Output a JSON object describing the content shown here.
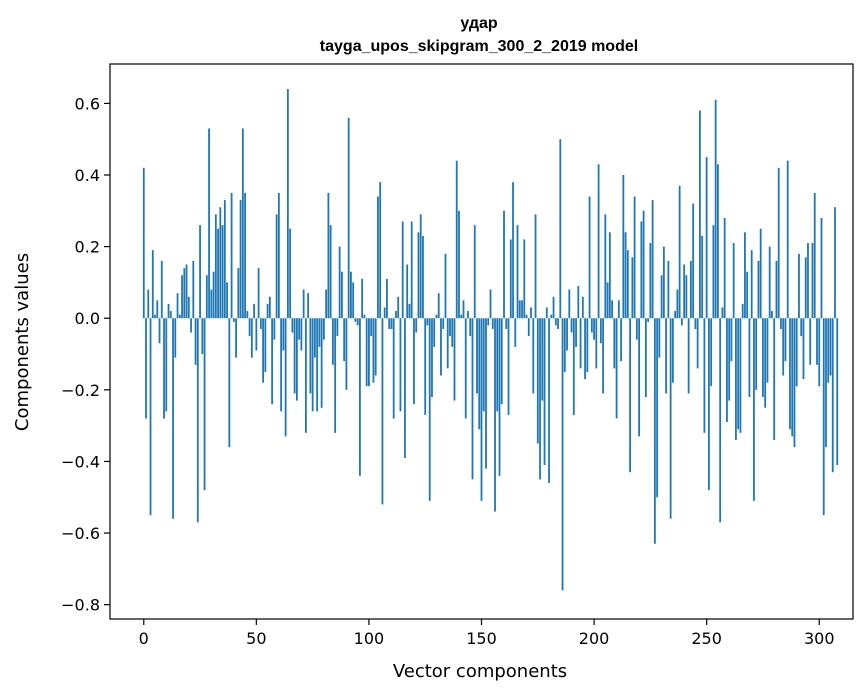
{
  "chart_data": {
    "type": "bar",
    "title": "удар",
    "subtitle": "tayga_upos_skipgram_300_2_2019 model",
    "xlabel": "Vector components",
    "ylabel": "Components values",
    "xlim": [
      -15,
      315
    ],
    "ylim": [
      -0.84,
      0.71
    ],
    "xticks": [
      0,
      50,
      100,
      150,
      200,
      250,
      300
    ],
    "xtick_labels": [
      "0",
      "50",
      "100",
      "150",
      "200",
      "250",
      "300"
    ],
    "yticks": [
      -0.8,
      -0.6,
      -0.4,
      -0.2,
      0.0,
      0.2,
      0.4,
      0.6
    ],
    "ytick_labels": [
      "−0.8",
      "−0.6",
      "−0.4",
      "−0.2",
      "0.0",
      "0.2",
      "0.4",
      "0.6"
    ],
    "bar_color": "#1f77b4",
    "grid": false,
    "values": [
      0.42,
      -0.28,
      0.08,
      -0.55,
      0.19,
      0.01,
      0.05,
      -0.07,
      0.16,
      -0.28,
      -0.26,
      0.04,
      0.02,
      -0.56,
      -0.11,
      0.07,
      0.01,
      0.12,
      0.14,
      0.15,
      0.06,
      -0.04,
      0.16,
      -0.13,
      -0.57,
      0.26,
      -0.1,
      -0.48,
      0.12,
      0.53,
      0.08,
      0.13,
      0.29,
      0.25,
      0.31,
      0.26,
      0.33,
      0.1,
      -0.36,
      0.35,
      -0.01,
      -0.11,
      0.14,
      0.33,
      0.53,
      0.35,
      0.02,
      -0.05,
      -0.11,
      0.04,
      -0.09,
      0.14,
      -0.03,
      -0.18,
      -0.15,
      0.04,
      0.06,
      -0.24,
      -0.06,
      0.29,
      0.35,
      -0.26,
      -0.09,
      -0.33,
      0.64,
      0.25,
      -0.04,
      -0.21,
      -0.23,
      -0.06,
      -0.09,
      0.08,
      -0.32,
      0.07,
      -0.21,
      -0.26,
      -0.11,
      -0.26,
      -0.08,
      -0.25,
      -0.06,
      0.08,
      0.35,
      0.26,
      -0.13,
      -0.32,
      -0.05,
      0.2,
      0.13,
      -0.12,
      -0.2,
      0.56,
      0.13,
      0.1,
      -0.01,
      -0.02,
      -0.44,
      0.11,
      0.01,
      -0.19,
      -0.19,
      -0.05,
      -0.18,
      -0.16,
      0.34,
      0.38,
      -0.52,
      0.03,
      0.11,
      -0.03,
      -0.03,
      -0.28,
      0.02,
      0.06,
      -0.26,
      0.27,
      -0.39,
      0.15,
      0.04,
      0.27,
      -0.24,
      -0.04,
      0.24,
      0.29,
      0.23,
      -0.27,
      -0.02,
      -0.51,
      -0.22,
      -0.08,
      0.01,
      0.07,
      -0.16,
      -0.03,
      0.18,
      -0.14,
      -0.05,
      -0.08,
      -0.23,
      0.44,
      0.3,
      0.01,
      0.05,
      -0.28,
      0.02,
      -0.05,
      -0.45,
      0.26,
      -0.21,
      -0.31,
      -0.51,
      -0.26,
      -0.42,
      -0.02,
      0.08,
      -0.03,
      -0.54,
      -0.26,
      -0.44,
      -0.24,
      0.3,
      -0.03,
      -0.27,
      0.22,
      0.38,
      -0.08,
      0.26,
      0.05,
      0.05,
      0.22,
      0.01,
      -0.05,
      0.03,
      -0.21,
      0.29,
      -0.35,
      -0.45,
      -0.23,
      -0.41,
      0.03,
      -0.46,
      0.01,
      0.06,
      -0.02,
      -0.03,
      0.5,
      -0.76,
      -0.15,
      -0.09,
      0.08,
      -0.04,
      -0.27,
      -0.08,
      0.09,
      -0.14,
      0.06,
      -0.17,
      -0.15,
      0.34,
      -0.04,
      -0.06,
      -0.14,
      0.43,
      -0.07,
      -0.21,
      0.29,
      0.1,
      0.24,
      0.05,
      -0.14,
      -0.28,
      0.05,
      -0.12,
      0.4,
      0.24,
      0.19,
      -0.43,
      0.17,
      0.34,
      -0.06,
      -0.33,
      0.27,
      0.3,
      -0.22,
      -0.01,
      0.21,
      0.33,
      -0.63,
      -0.5,
      -0.11,
      0.12,
      0.2,
      -0.21,
      0.16,
      -0.56,
      -0.18,
      0.02,
      0.08,
      0.37,
      -0.02,
      0.15,
      0.12,
      -0.21,
      0.16,
      0.32,
      -0.03,
      -0.14,
      0.58,
      0.23,
      -0.32,
      0.45,
      -0.48,
      -0.19,
      0.26,
      0.61,
      0.43,
      -0.57,
      0.03,
      0.28,
      -0.29,
      -0.23,
      -0.12,
      0.21,
      -0.34,
      -0.31,
      -0.32,
      0.04,
      0.24,
      0.13,
      -0.22,
      0.19,
      -0.51,
      -0.2,
      0.16,
      0.25,
      -0.22,
      -0.25,
      -0.18,
      0.2,
      0.02,
      -0.34,
      0.16,
      0.42,
      -0.03,
      -0.16,
      -0.12,
      0.44,
      -0.31,
      -0.33,
      -0.36,
      -0.19,
      0.18,
      -0.05,
      -0.17,
      0.17,
      0.21,
      -0.13,
      0.21,
      0.35,
      -0.13,
      -0.19,
      0.28,
      -0.55,
      -0.36,
      -0.18,
      -0.16,
      -0.43,
      0.31,
      -0.41
    ]
  }
}
